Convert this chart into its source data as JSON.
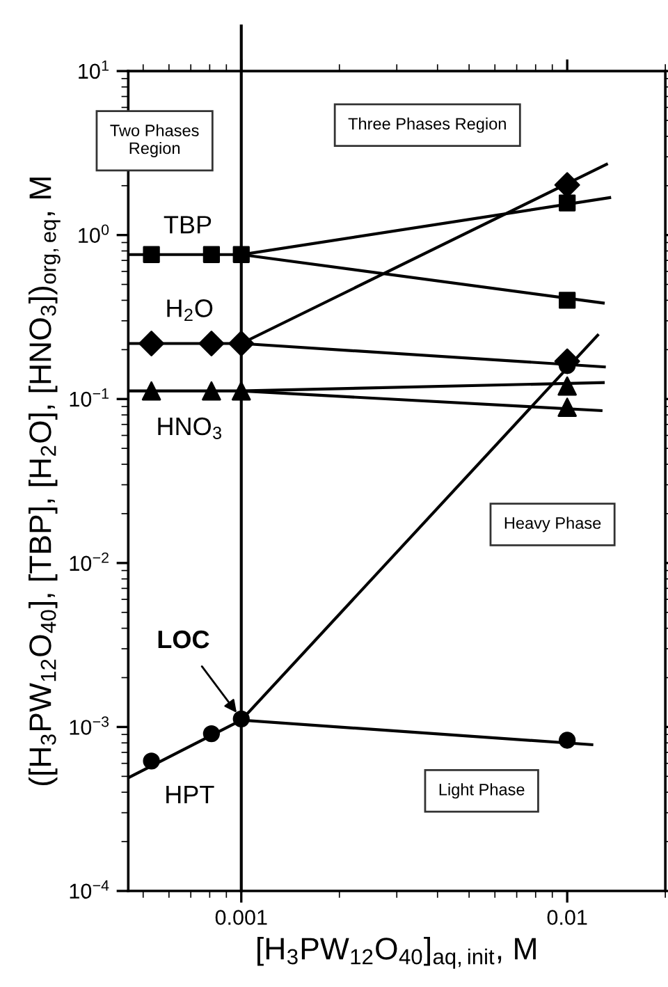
{
  "chart_data": {
    "type": "line",
    "xlabel": "[H$_{3}$PW$_{12}$O$_{40}$]$_{aq,init}$, M",
    "ylabel": "([H$_{3}$PW$_{12}$O$_{40}$], [TBP], [H$_{2}$O], [HNO$_{3}$])$_{org,eq}$, M",
    "log": "xy",
    "grid": false,
    "legend": false,
    "xlim": [
      0.00045,
      0.02
    ],
    "ylim": [
      0.0001,
      10
    ],
    "xticks": [
      0.001,
      0.01
    ],
    "yticks": [
      {
        "value": 0.0001,
        "label": "10$^{−4}$"
      },
      {
        "value": 0.001,
        "label": "10$^{−3}$"
      },
      {
        "value": 0.01,
        "label": "10$^{−2}$"
      },
      {
        "value": 0.1,
        "label": "10$^{−1}$"
      },
      {
        "value": 1,
        "label": "10$^{0}$"
      },
      {
        "value": 10,
        "label": "10$^{1}$"
      }
    ],
    "ref_lines": [
      {
        "axis": "x",
        "value": 0.001,
        "color": "#000000",
        "line_style": "solid"
      }
    ],
    "series": [
      {
        "color": "#000000",
        "marker": "none",
        "x": [
          0.00045,
          0.001,
          0.0129
        ],
        "values": [
          0.76,
          0.76,
          0.385
        ]
      },
      {
        "color": "#000000",
        "marker": "none",
        "x": [
          0.001,
          0.0135
        ],
        "values": [
          0.76,
          1.69
        ]
      },
      {
        "color": "#000000",
        "marker": "none",
        "x": [
          0.00045,
          0.001,
          0.013
        ],
        "values": [
          0.218,
          0.218,
          0.157
        ]
      },
      {
        "color": "#000000",
        "marker": "none",
        "x": [
          0.001,
          0.0132
        ],
        "values": [
          0.218,
          2.7
        ]
      },
      {
        "color": "#000000",
        "marker": "none",
        "x": [
          0.00045,
          0.001,
          0.0127
        ],
        "values": [
          0.112,
          0.112,
          0.085
        ]
      },
      {
        "color": "#000000",
        "marker": "none",
        "x": [
          0.001,
          0.0129
        ],
        "values": [
          0.112,
          0.126
        ]
      },
      {
        "color": "#000000",
        "marker": "none",
        "x": [
          0.00045,
          0.001,
          0.0124
        ],
        "values": [
          0.00049,
          0.0011,
          0.245
        ]
      },
      {
        "color": "#000000",
        "marker": "none",
        "x": [
          0.001,
          0.0119
        ],
        "values": [
          0.0011,
          0.00078
        ]
      },
      {
        "type": "scatter",
        "color": "#000000",
        "marker": "square",
        "x": [
          0.00053,
          0.00081,
          0.001,
          0.01,
          0.01
        ],
        "values": [
          0.76,
          0.76,
          0.76,
          1.57,
          0.4
        ]
      },
      {
        "type": "scatter",
        "color": "#000000",
        "marker": "diamond",
        "x": [
          0.00053,
          0.00081,
          0.001,
          0.01,
          0.01
        ],
        "values": [
          0.218,
          0.218,
          0.218,
          2.02,
          0.17
        ]
      },
      {
        "type": "scatter",
        "color": "#000000",
        "marker": "triangle",
        "x": [
          0.00053,
          0.00081,
          0.001,
          0.01,
          0.01
        ],
        "values": [
          0.112,
          0.112,
          0.112,
          0.12,
          0.089
        ]
      },
      {
        "type": "scatter",
        "color": "#000000",
        "marker": "circle",
        "x": [
          0.00053,
          0.00081,
          0.001,
          0.01,
          0.01
        ],
        "values": [
          0.00062,
          0.00091,
          0.00112,
          0.00083,
          0.16
        ]
      }
    ],
    "annotations": [
      "Two Phases\nRegion",
      "Three Phases Region",
      "Heavy Phase",
      "Light Phase",
      "TBP",
      "H$_{2}$O",
      "HNO$_{3}$",
      "HPT",
      {
        "text": "LOC",
        "x": 0.001,
        "y": 0.00112
      }
    ]
  }
}
